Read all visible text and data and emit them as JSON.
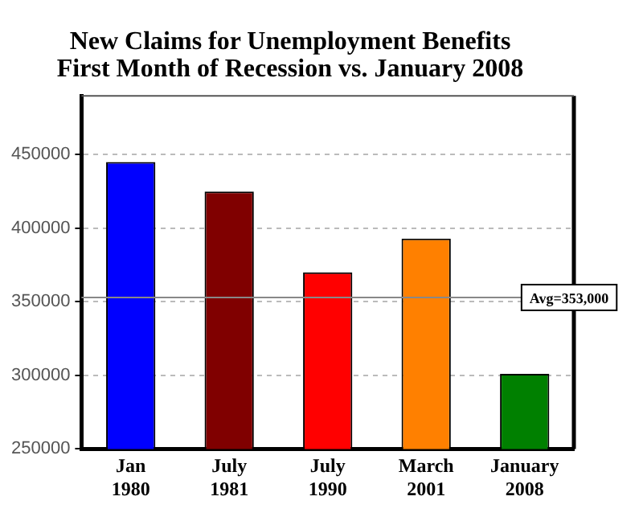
{
  "chart_data": {
    "type": "bar",
    "title": "New Claims for Unemployment Benefits\nFirst Month of Recession vs. January 2008",
    "categories": [
      "Jan 1980",
      "July 1981",
      "July 1990",
      "March 2001",
      "January 2008"
    ],
    "values": [
      445000,
      425000,
      370000,
      393000,
      301000
    ],
    "colors": [
      "#0000ff",
      "#800000",
      "#ff0000",
      "#ff8000",
      "#008000"
    ],
    "ylim": [
      250000,
      490000
    ],
    "yticks": [
      250000,
      300000,
      350000,
      400000,
      450000
    ],
    "grid": "y",
    "ref_lines": [
      {
        "axis": "y",
        "value": 353000,
        "label": "Avg=353,000",
        "color": "#888888"
      }
    ],
    "legend": false
  }
}
